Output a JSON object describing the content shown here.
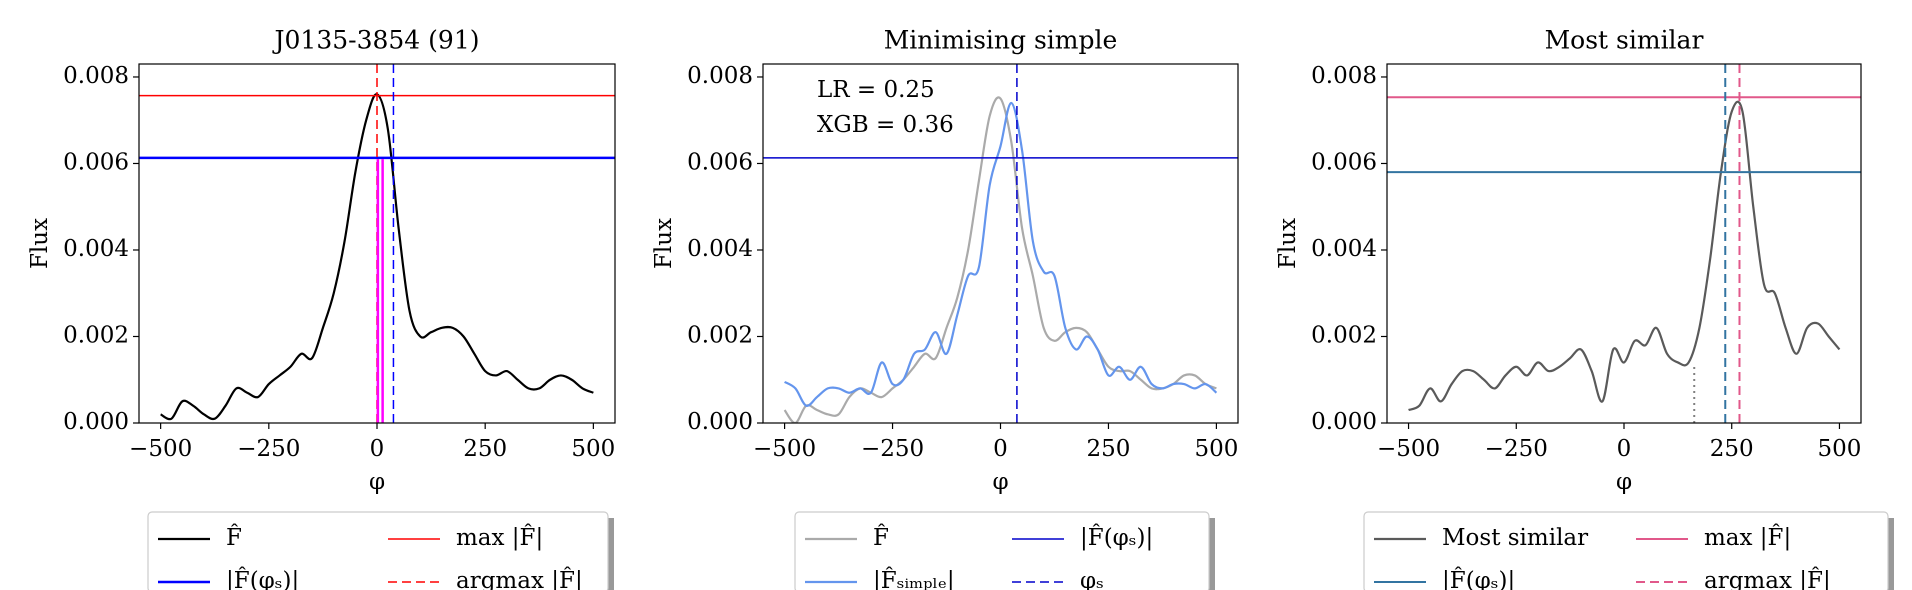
{
  "chart_data": [
    {
      "type": "line",
      "title": "J0135-3854 (91)",
      "xlabel": "φ",
      "ylabel": "Flux",
      "x": [
        -500,
        -475,
        -450,
        -425,
        -400,
        -375,
        -350,
        -325,
        -300,
        -275,
        -250,
        -225,
        -200,
        -175,
        -150,
        -125,
        -100,
        -75,
        -50,
        -25,
        0,
        25,
        50,
        75,
        100,
        125,
        150,
        175,
        200,
        225,
        250,
        275,
        300,
        325,
        350,
        375,
        400,
        425,
        450,
        475,
        500
      ],
      "series": [
        {
          "name": "F̂",
          "color": "#000000",
          "values": [
            0.0002,
            0.0001,
            0.0005,
            0.0004,
            0.0002,
            0.0001,
            0.0004,
            0.0008,
            0.0007,
            0.0006,
            0.0009,
            0.0011,
            0.0013,
            0.0016,
            0.0015,
            0.0022,
            0.003,
            0.0042,
            0.0058,
            0.007,
            0.0076,
            0.0068,
            0.0045,
            0.0026,
            0.002,
            0.0021,
            0.0022,
            0.0022,
            0.002,
            0.0016,
            0.0012,
            0.0011,
            0.0012,
            0.001,
            0.0008,
            0.0008,
            0.001,
            0.0011,
            0.001,
            0.0008,
            0.0007
          ]
        }
      ],
      "lines": [
        {
          "name": "|F̂(φₛ)|",
          "orientation": "h",
          "value": 0.00613,
          "color": "#0000ff",
          "dash": "solid",
          "linewidth": 2.5
        },
        {
          "name": "max |F̂|",
          "orientation": "h",
          "value": 0.00757,
          "color": "#ff0000",
          "dash": "solid",
          "linewidth": 1.5
        },
        {
          "name": "argmax |F̂|",
          "orientation": "v",
          "value": 0,
          "color": "#ff0000",
          "dash": "dashed",
          "linewidth": 1.5
        },
        {
          "orientation": "v",
          "value": 38,
          "color": "#0000ff",
          "dash": "dashed",
          "linewidth": 1.5
        },
        {
          "orientation": "v",
          "value": 2,
          "ymax": 0.0061,
          "color": "#ff00ff",
          "dash": "solid",
          "linewidth": 2.5
        },
        {
          "orientation": "v",
          "value": 13,
          "ymax": 0.0061,
          "color": "#ff00ff",
          "dash": "solid",
          "linewidth": 2.5
        }
      ],
      "xlim": [
        -550,
        550
      ],
      "ylim": [
        0,
        0.0083
      ],
      "xticks": [
        {
          "value": -500,
          "label": "−500"
        },
        {
          "value": -250,
          "label": "−250"
        },
        0,
        250,
        500
      ],
      "yticks": [
        {
          "value": 0,
          "label": "0.000"
        },
        {
          "value": 0.002,
          "label": "0.002"
        },
        {
          "value": 0.004,
          "label": "0.004"
        },
        {
          "value": 0.006,
          "label": "0.006"
        },
        {
          "value": 0.008,
          "label": "0.008"
        }
      ]
    },
    {
      "type": "line",
      "title": "Minimising simple",
      "xlabel": "φ",
      "ylabel": "Flux",
      "annotations": [
        "LR = 0.25",
        "XGB = 0.36"
      ],
      "x": [
        -500,
        -475,
        -450,
        -425,
        -400,
        -375,
        -350,
        -325,
        -300,
        -275,
        -250,
        -225,
        -200,
        -175,
        -150,
        -125,
        -100,
        -75,
        -50,
        -25,
        0,
        25,
        50,
        75,
        100,
        125,
        150,
        175,
        200,
        225,
        250,
        275,
        300,
        325,
        350,
        375,
        400,
        425,
        450,
        475,
        500
      ],
      "series": [
        {
          "name": "F̂",
          "color": "#aaaaaa",
          "values": [
            0.0003,
            0,
            0.0004,
            0.0003,
            0.0002,
            0.0002,
            0.0006,
            0.0008,
            0.0007,
            0.0006,
            0.0008,
            0.001,
            0.0013,
            0.0016,
            0.0015,
            0.0022,
            0.0029,
            0.004,
            0.0056,
            0.0071,
            0.0075,
            0.0065,
            0.0045,
            0.0034,
            0.0022,
            0.0019,
            0.0021,
            0.0022,
            0.0021,
            0.0017,
            0.0013,
            0.0012,
            0.0012,
            0.001,
            0.0008,
            0.0008,
            0.0009,
            0.0011,
            0.0011,
            0.0009,
            0.0008
          ]
        },
        {
          "name": "|F̂ₛᵢₘₚₗₑ|",
          "color": "#6495ed",
          "values": [
            0.00095,
            0.0008,
            0.0004,
            0.0006,
            0.0008,
            0.0008,
            0.0007,
            0.0008,
            0.0007,
            0.0014,
            0.0009,
            0.001,
            0.0016,
            0.0017,
            0.0021,
            0.0016,
            0.0025,
            0.0034,
            0.0036,
            0.0055,
            0.0064,
            0.0074,
            0.0063,
            0.0042,
            0.0035,
            0.0034,
            0.0022,
            0.0017,
            0.002,
            0.0017,
            0.0011,
            0.0013,
            0.001,
            0.0013,
            0.0009,
            0.0008,
            0.0009,
            0.0009,
            0.0008,
            0.0009,
            0.0007
          ]
        }
      ],
      "lines": [
        {
          "name": "|F̂(φₛ)|",
          "orientation": "h",
          "value": 0.00613,
          "color": "#0000cc",
          "dash": "solid",
          "linewidth": 1.5
        },
        {
          "name": "φₛ",
          "orientation": "v",
          "value": 38,
          "color": "#0000cc",
          "dash": "dashed",
          "linewidth": 1.5
        }
      ],
      "xlim": [
        -550,
        550
      ],
      "ylim": [
        0,
        0.0083
      ],
      "xticks": [
        {
          "value": -500,
          "label": "−500"
        },
        {
          "value": -250,
          "label": "−250"
        },
        0,
        250,
        500
      ],
      "yticks": [
        {
          "value": 0,
          "label": "0.000"
        },
        {
          "value": 0.002,
          "label": "0.002"
        },
        {
          "value": 0.004,
          "label": "0.004"
        },
        {
          "value": 0.006,
          "label": "0.006"
        },
        {
          "value": 0.008,
          "label": "0.008"
        }
      ]
    },
    {
      "type": "line",
      "title": "Most similar",
      "xlabel": "φ",
      "ylabel": "Flux",
      "x": [
        -500,
        -475,
        -450,
        -425,
        -400,
        -375,
        -350,
        -325,
        -300,
        -275,
        -250,
        -225,
        -200,
        -175,
        -150,
        -125,
        -100,
        -75,
        -50,
        -25,
        0,
        25,
        50,
        75,
        100,
        125,
        150,
        175,
        200,
        225,
        250,
        275,
        300,
        325,
        350,
        375,
        400,
        425,
        450,
        475,
        500
      ],
      "series": [
        {
          "name": "Most similar",
          "color": "#5a5a5a",
          "values": [
            0.0003,
            0.0004,
            0.0008,
            0.0005,
            0.0009,
            0.0012,
            0.0012,
            0.001,
            0.0008,
            0.0011,
            0.0013,
            0.0011,
            0.0014,
            0.0012,
            0.0013,
            0.0015,
            0.0017,
            0.0012,
            0.0005,
            0.0017,
            0.0014,
            0.0019,
            0.0018,
            0.0022,
            0.0016,
            0.0014,
            0.0014,
            0.0022,
            0.0038,
            0.0058,
            0.0072,
            0.0072,
            0.005,
            0.0032,
            0.003,
            0.0022,
            0.0016,
            0.0022,
            0.0023,
            0.002,
            0.0017
          ]
        }
      ],
      "lines": [
        {
          "name": "|F̂(φₛ)|",
          "orientation": "h",
          "value": 0.0058,
          "color": "#3274a1",
          "dash": "solid",
          "linewidth": 2
        },
        {
          "name": "max |F̂|",
          "orientation": "h",
          "value": 0.00753,
          "color": "#e1588a",
          "dash": "solid",
          "linewidth": 2
        },
        {
          "name": "argmax |F̂|",
          "orientation": "v",
          "value": 268,
          "color": "#e1588a",
          "dash": "dashed",
          "linewidth": 2
        },
        {
          "orientation": "v",
          "value": 235,
          "color": "#3274a1",
          "dash": "dashed",
          "linewidth": 2
        },
        {
          "orientation": "v",
          "value": 163,
          "ymax": 0.0013,
          "color": "#808080",
          "dash": "dotted",
          "linewidth": 2
        }
      ],
      "xlim": [
        -550,
        550
      ],
      "ylim": [
        0,
        0.0083
      ],
      "xticks": [
        {
          "value": -500,
          "label": "−500"
        },
        {
          "value": -250,
          "label": "−250"
        },
        0,
        250,
        500
      ],
      "yticks": [
        {
          "value": 0,
          "label": "0.000"
        },
        {
          "value": 0.002,
          "label": "0.002"
        },
        {
          "value": 0.004,
          "label": "0.004"
        },
        {
          "value": 0.006,
          "label": "0.006"
        },
        {
          "value": 0.008,
          "label": "0.008"
        }
      ]
    }
  ]
}
